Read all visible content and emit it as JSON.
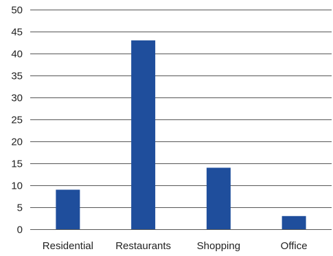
{
  "chart_data": {
    "type": "bar",
    "categories": [
      "Residential",
      "Restaurants",
      "Shopping",
      "Office"
    ],
    "values": [
      9,
      43,
      14,
      3
    ],
    "y_ticks": [
      "0",
      "5",
      "10",
      "15",
      "20",
      "25",
      "30",
      "35",
      "40",
      "45",
      "50"
    ],
    "ylim": [
      0,
      50
    ],
    "grid": true,
    "legend": "none",
    "bar_color": "#1f4e9c",
    "grid_color": "#555555"
  }
}
